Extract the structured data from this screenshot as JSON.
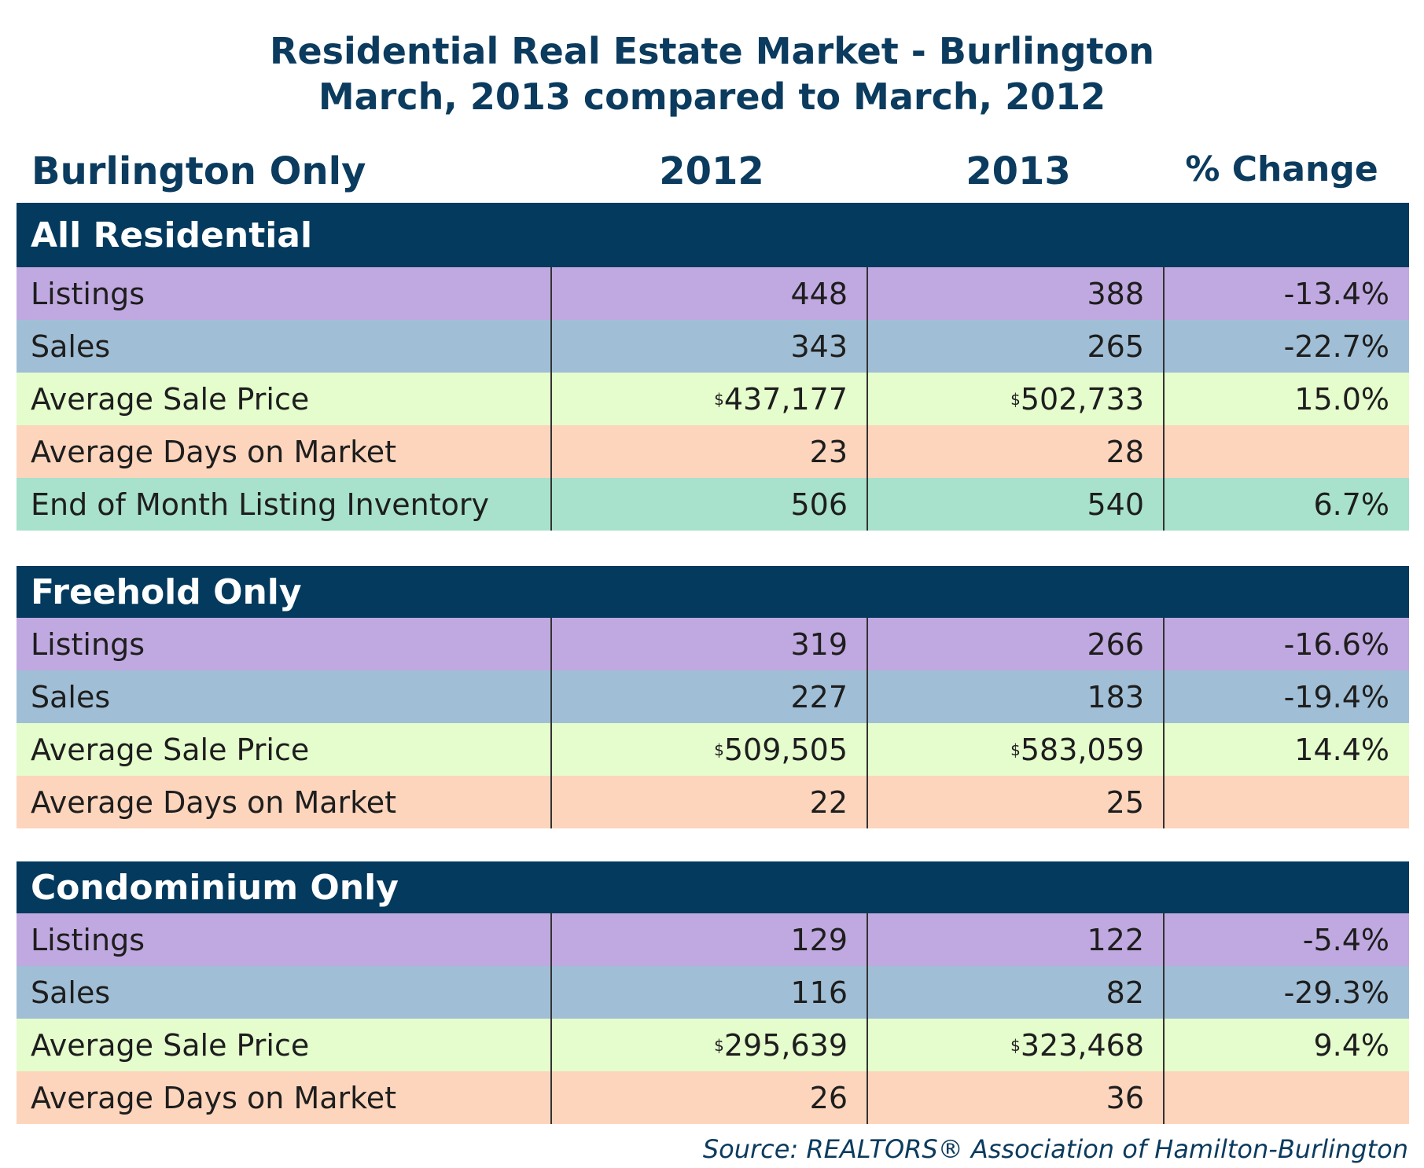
{
  "title": {
    "line1": "Residential Real Estate Market - Burlington",
    "line2": "March, 2013 compared to March, 2012"
  },
  "columns": [
    "Burlington Only",
    "2012",
    "2013",
    "% Change"
  ],
  "sections": [
    {
      "name": "All Residential",
      "rows": [
        [
          "Listings",
          "448",
          "388",
          "-13.4%"
        ],
        [
          "Sales",
          "343",
          "265",
          "-22.7%"
        ],
        [
          "Average Sale Price",
          {
            "symbol": "$",
            "amount": "437,177"
          },
          {
            "symbol": "$",
            "amount": "502,733"
          },
          "15.0%"
        ],
        [
          "Average Days on Market",
          "23",
          "28",
          null
        ],
        [
          "End of Month Listing Inventory",
          "506",
          "540",
          "6.7%"
        ]
      ]
    },
    {
      "name": "Freehold Only",
      "rows": [
        [
          "Listings",
          "319",
          "266",
          "-16.6%"
        ],
        [
          "Sales",
          "227",
          "183",
          "-19.4%"
        ],
        [
          "Average Sale Price",
          {
            "symbol": "$",
            "amount": "509,505"
          },
          {
            "symbol": "$",
            "amount": "583,059"
          },
          "14.4%"
        ],
        [
          "Average Days on Market",
          "22",
          "25",
          null
        ]
      ]
    },
    {
      "name": "Condominium Only",
      "rows": [
        [
          "Listings",
          "129",
          "122",
          "-5.4%"
        ],
        [
          "Sales",
          "116",
          "82",
          "-29.3%"
        ],
        [
          "Average Sale Price",
          {
            "symbol": "$",
            "amount": "295,639"
          },
          {
            "symbol": "$",
            "amount": "323,468"
          },
          "9.4%"
        ],
        [
          "Average Days on Market",
          "26",
          "36",
          null
        ]
      ]
    }
  ],
  "source": "Source:  REALTORS® Association of Hamilton-Burlington"
}
